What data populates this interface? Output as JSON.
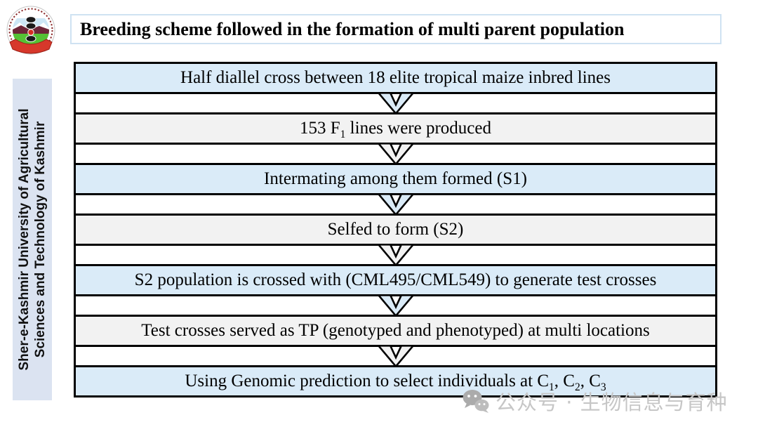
{
  "slide": {
    "title": "Breeding scheme followed in the formation of multi parent population",
    "sidebar": {
      "line1": "Sher-e-Kashmir University of Agricultural",
      "line2": "Sciences and Technology of Kashmir"
    },
    "logo_name": "skuast-kashmir-university-emblem",
    "flow_steps": [
      {
        "text": "Half diallel cross between 18 elite tropical maize inbred lines",
        "variant": "blue"
      },
      {
        "text": "153 F_{1} lines were produced",
        "variant": "gray"
      },
      {
        "text": "Intermating among them formed (S1)",
        "variant": "blue"
      },
      {
        "text": "Selfed to form (S2)",
        "variant": "gray"
      },
      {
        "text": "S2 population is crossed with (CML495/CML549) to generate test crosses",
        "variant": "blue"
      },
      {
        "text": "Test crosses served as TP (genotyped and phenotyped) at multi locations",
        "variant": "gray"
      },
      {
        "text": "Using Genomic prediction to select individuals at C_{1}, C_{2}, C_{3}",
        "variant": "blue"
      }
    ],
    "watermark": {
      "icon": "wechat-icon",
      "text": "公众号 · 生物信息与育种"
    },
    "colors": {
      "blue": "#daebf8",
      "gray": "#f2f2f2",
      "border": "#000000",
      "sidebar_bg": "#dbe3f1",
      "title_border": "#cfe2f2",
      "watermark": "#c6c6c6"
    }
  }
}
